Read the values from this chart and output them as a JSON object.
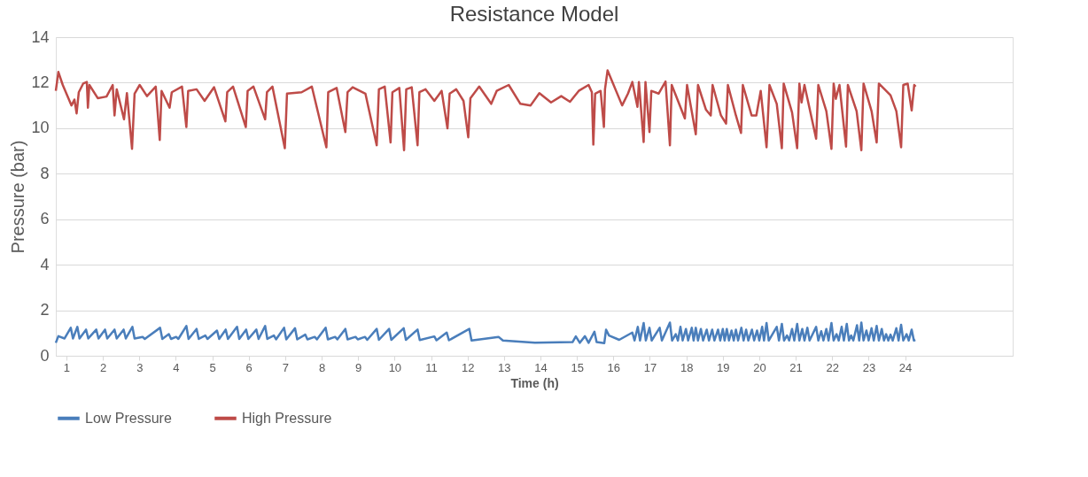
{
  "chart_data": {
    "type": "line",
    "title": "Resistance Model",
    "xlabel": "Time (h)",
    "ylabel": "Pressure (bar)",
    "xlim": [
      0.71,
      26.95
    ],
    "xticks": [
      1,
      2,
      3,
      4,
      5,
      6,
      7,
      8,
      9,
      10,
      11,
      12,
      13,
      14,
      15,
      16,
      17,
      18,
      19,
      20,
      21,
      22,
      23,
      24
    ],
    "ylim": [
      0,
      14
    ],
    "yticks": [
      0,
      2,
      4,
      6,
      8,
      10,
      12,
      14
    ],
    "grid": "y",
    "legend": "bottom",
    "marker": "none",
    "line_style": "solid",
    "series": [
      {
        "name": "Low Pressure",
        "color": "#4a7ebb",
        "x": [
          0.71,
          0.78,
          0.95,
          1.12,
          1.18,
          1.3,
          1.36,
          1.54,
          1.6,
          1.82,
          1.88,
          2.06,
          2.12,
          2.32,
          2.38,
          2.57,
          2.63,
          2.81,
          2.87,
          3.09,
          3.15,
          3.57,
          3.63,
          3.81,
          3.87,
          4.01,
          4.07,
          4.29,
          4.35,
          4.57,
          4.63,
          4.81,
          4.87,
          5.13,
          5.19,
          5.37,
          5.43,
          5.68,
          5.74,
          5.93,
          5.99,
          6.21,
          6.27,
          6.45,
          6.51,
          6.69,
          6.75,
          6.97,
          7.03,
          7.27,
          7.33,
          7.55,
          7.61,
          7.81,
          7.87,
          8.11,
          8.17,
          8.37,
          8.43,
          8.65,
          8.71,
          8.93,
          8.99,
          9.19,
          9.25,
          9.51,
          9.57,
          9.85,
          9.91,
          10.25,
          10.31,
          10.63,
          10.69,
          11.09,
          11.15,
          11.43,
          11.49,
          12.05,
          12.11,
          12.85,
          12.97,
          13.85,
          14.88,
          14.97,
          15.08,
          15.22,
          15.32,
          15.48,
          15.54,
          15.75,
          15.8,
          15.88,
          16.16,
          16.52,
          16.58,
          16.67,
          16.73,
          16.83,
          16.89,
          16.99,
          17.05,
          17.27,
          17.33,
          17.55,
          17.61,
          17.71,
          17.77,
          17.84,
          17.9,
          17.99,
          18.05,
          18.15,
          18.2,
          18.26,
          18.32,
          18.4,
          18.46,
          18.56,
          18.62,
          18.71,
          18.77,
          18.87,
          18.93,
          19.0,
          19.05,
          19.11,
          19.17,
          19.24,
          19.3,
          19.36,
          19.42,
          19.51,
          19.57,
          19.64,
          19.7,
          19.8,
          19.86,
          19.94,
          20.0,
          20.08,
          20.13,
          20.2,
          20.26,
          20.48,
          20.54,
          20.62,
          20.68,
          20.76,
          20.82,
          20.9,
          20.96,
          21.04,
          21.1,
          21.18,
          21.24,
          21.32,
          21.38,
          21.56,
          21.62,
          21.7,
          21.76,
          21.84,
          21.9,
          21.98,
          22.04,
          22.12,
          22.18,
          22.26,
          22.32,
          22.4,
          22.46,
          22.52,
          22.58,
          22.68,
          22.74,
          22.8,
          22.86,
          22.94,
          23.0,
          23.08,
          23.14,
          23.22,
          23.28,
          23.36,
          23.42,
          23.48,
          23.54,
          23.6,
          23.66,
          23.76,
          23.82,
          23.89,
          23.95,
          24.04,
          24.1,
          24.18,
          24.24,
          24.28
        ],
        "values": [
          0.57,
          0.86,
          0.76,
          1.23,
          0.76,
          1.27,
          0.76,
          1.15,
          0.76,
          1.15,
          0.76,
          1.15,
          0.76,
          1.15,
          0.76,
          1.15,
          0.76,
          1.27,
          0.76,
          0.83,
          0.74,
          1.23,
          0.74,
          0.95,
          0.74,
          0.83,
          0.74,
          1.31,
          0.74,
          1.18,
          0.74,
          0.89,
          0.74,
          1.11,
          0.74,
          1.15,
          0.74,
          1.27,
          0.74,
          1.15,
          0.74,
          1.15,
          0.74,
          1.31,
          0.74,
          0.89,
          0.72,
          1.23,
          0.72,
          1.21,
          0.72,
          0.93,
          0.72,
          0.83,
          0.72,
          1.23,
          0.72,
          0.83,
          0.72,
          1.18,
          0.72,
          0.83,
          0.72,
          0.83,
          0.7,
          1.18,
          0.7,
          1.18,
          0.7,
          1.21,
          0.7,
          1.15,
          0.69,
          0.85,
          0.68,
          1.02,
          0.68,
          1.18,
          0.67,
          0.83,
          0.67,
          0.57,
          0.6,
          0.85,
          0.57,
          0.86,
          0.57,
          1.06,
          0.6,
          0.55,
          1.15,
          0.89,
          0.7,
          1.02,
          0.67,
          1.27,
          0.67,
          1.44,
          0.67,
          1.23,
          0.67,
          1.23,
          0.67,
          1.46,
          0.67,
          0.95,
          0.67,
          1.27,
          0.67,
          1.18,
          0.67,
          1.23,
          0.67,
          1.23,
          0.67,
          1.18,
          0.67,
          1.15,
          0.67,
          1.15,
          0.67,
          1.15,
          0.67,
          1.18,
          0.67,
          1.18,
          0.67,
          1.11,
          0.67,
          1.15,
          0.67,
          1.23,
          0.67,
          1.15,
          0.67,
          1.15,
          0.67,
          1.11,
          0.67,
          1.27,
          0.67,
          1.44,
          0.67,
          1.27,
          0.67,
          1.4,
          0.67,
          0.89,
          0.67,
          1.18,
          0.67,
          1.4,
          0.67,
          1.18,
          0.67,
          1.23,
          0.67,
          1.27,
          0.67,
          1.08,
          0.67,
          1.18,
          0.67,
          1.44,
          0.67,
          0.95,
          0.67,
          1.27,
          0.67,
          1.4,
          0.67,
          0.89,
          0.67,
          1.34,
          0.67,
          1.46,
          0.67,
          1.11,
          0.67,
          1.21,
          0.67,
          1.31,
          0.67,
          1.18,
          0.67,
          0.95,
          0.67,
          0.93,
          0.67,
          1.21,
          0.67,
          1.36,
          0.67,
          0.95,
          0.67,
          1.15,
          0.67,
          0.7
        ]
      },
      {
        "name": "High Pressure",
        "color": "#be4b48",
        "x": [
          0.71,
          0.78,
          0.9,
          1.14,
          1.22,
          1.28,
          1.34,
          1.46,
          1.56,
          1.59,
          1.63,
          1.86,
          2.1,
          2.27,
          2.32,
          2.38,
          2.58,
          2.66,
          2.8,
          2.87,
          3.01,
          3.21,
          3.45,
          3.56,
          3.61,
          3.83,
          3.89,
          4.17,
          4.29,
          4.34,
          4.57,
          4.79,
          5.05,
          5.36,
          5.41,
          5.57,
          5.92,
          5.97,
          6.13,
          6.45,
          6.5,
          6.65,
          6.99,
          7.05,
          7.45,
          7.73,
          8.13,
          8.18,
          8.41,
          8.65,
          8.71,
          8.85,
          9.2,
          9.51,
          9.57,
          9.73,
          9.89,
          9.94,
          10.13,
          10.26,
          10.32,
          10.47,
          10.63,
          10.68,
          10.85,
          11.09,
          11.29,
          11.45,
          11.51,
          11.69,
          11.89,
          12.02,
          12.08,
          12.32,
          12.57,
          12.65,
          12.8,
          13.13,
          13.45,
          13.73,
          13.97,
          14.29,
          14.57,
          14.81,
          15.05,
          15.32,
          15.41,
          15.45,
          15.5,
          15.65,
          15.74,
          15.77,
          15.84,
          16.24,
          16.4,
          16.52,
          16.66,
          16.7,
          16.83,
          16.88,
          16.99,
          17.04,
          17.24,
          17.43,
          17.55,
          17.6,
          17.96,
          18.02,
          18.26,
          18.32,
          18.54,
          18.67,
          18.72,
          18.95,
          19.09,
          19.14,
          19.36,
          19.5,
          19.55,
          19.79,
          19.92,
          20.04,
          20.2,
          20.28,
          20.48,
          20.62,
          20.67,
          20.9,
          21.04,
          21.1,
          21.16,
          21.24,
          21.56,
          21.62,
          21.84,
          21.98,
          22.04,
          22.1,
          22.2,
          22.38,
          22.43,
          22.67,
          22.8,
          22.86,
          23.08,
          23.22,
          23.28,
          23.6,
          23.76,
          23.89,
          23.95,
          24.07,
          24.18,
          24.25,
          24.29
        ],
        "values": [
          11.64,
          12.47,
          11.9,
          11.0,
          11.26,
          10.65,
          11.58,
          11.96,
          12.03,
          10.9,
          11.9,
          11.32,
          11.39,
          11.9,
          10.56,
          11.71,
          10.39,
          11.54,
          9.09,
          11.52,
          11.9,
          11.41,
          11.83,
          9.48,
          11.64,
          10.9,
          11.58,
          11.83,
          10.05,
          11.64,
          11.71,
          11.2,
          11.8,
          10.3,
          11.58,
          11.83,
          10.05,
          11.64,
          11.83,
          10.39,
          11.58,
          11.83,
          9.12,
          11.52,
          11.58,
          11.83,
          9.16,
          11.58,
          11.77,
          9.83,
          11.58,
          11.8,
          11.52,
          9.25,
          11.71,
          11.83,
          9.37,
          11.58,
          11.77,
          9.03,
          11.71,
          11.8,
          9.25,
          11.58,
          11.71,
          11.2,
          11.64,
          9.99,
          11.52,
          11.71,
          11.2,
          9.6,
          11.32,
          11.83,
          11.26,
          11.07,
          11.64,
          11.9,
          11.07,
          11.0,
          11.54,
          11.13,
          11.41,
          11.16,
          11.64,
          11.9,
          11.58,
          9.28,
          11.52,
          11.64,
          10.05,
          11.71,
          12.54,
          11.0,
          11.52,
          12.03,
          10.94,
          12.03,
          9.39,
          12.03,
          9.83,
          11.64,
          11.52,
          12.05,
          9.25,
          11.9,
          10.43,
          11.9,
          9.73,
          11.9,
          10.81,
          10.56,
          11.9,
          10.56,
          10.2,
          11.9,
          10.56,
          9.79,
          11.9,
          10.56,
          10.56,
          11.64,
          9.16,
          11.9,
          11.07,
          9.12,
          11.96,
          10.69,
          9.12,
          11.96,
          11.13,
          11.9,
          9.54,
          11.9,
          10.75,
          9.09,
          11.96,
          11.29,
          11.9,
          9.19,
          11.9,
          10.75,
          9.03,
          11.96,
          10.75,
          9.37,
          11.96,
          11.45,
          10.75,
          9.16,
          11.9,
          11.96,
          10.78,
          11.9,
          11.83
        ]
      }
    ]
  }
}
